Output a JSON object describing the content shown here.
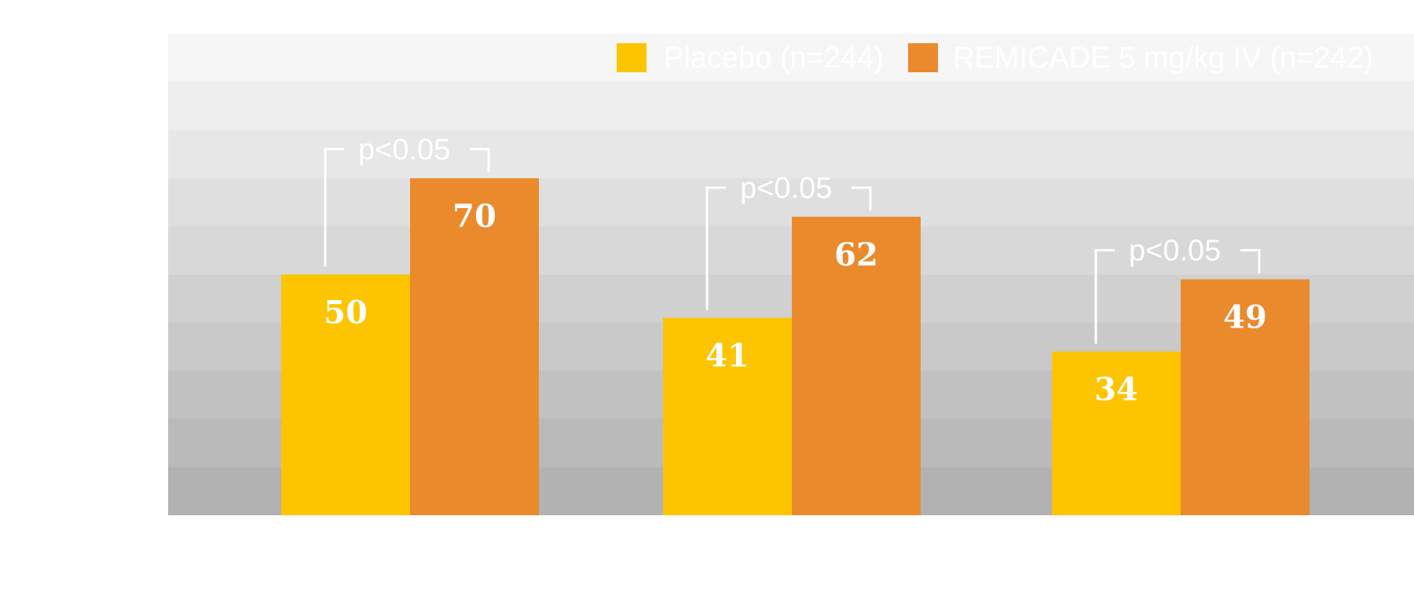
{
  "chart_data": {
    "type": "bar",
    "title": "",
    "xlabel": "",
    "ylabel": "",
    "ylim": [
      0,
      100
    ],
    "grid": true,
    "legend_position": "top-right",
    "categories": [
      "",
      "",
      ""
    ],
    "series": [
      {
        "name": "Placebo (n=244)",
        "color": "#FDC400",
        "values": [
          50,
          41,
          34
        ]
      },
      {
        "name": "REMICADE 5 mg/kg IV (n=242)",
        "color": "#EA8A2D",
        "values": [
          70,
          62,
          49
        ]
      }
    ],
    "annotations": [
      "p<0.05",
      "p<0.05",
      "p<0.05"
    ]
  }
}
